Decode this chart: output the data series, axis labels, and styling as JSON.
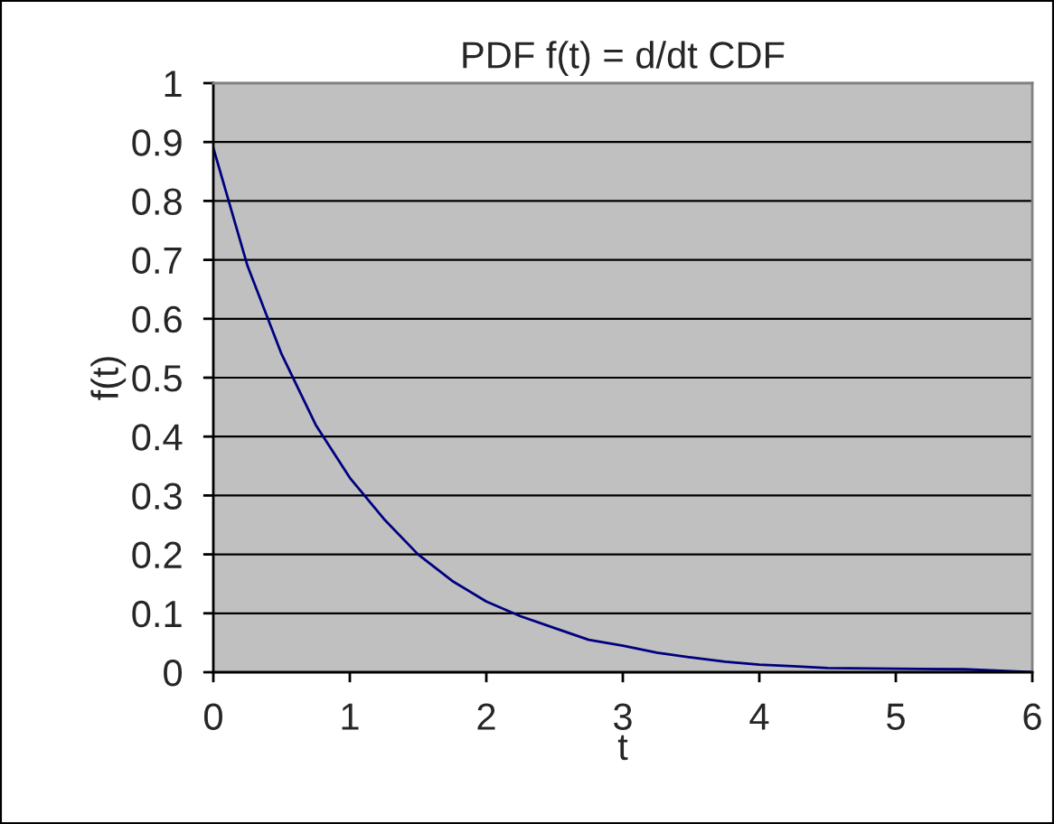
{
  "chart_data": {
    "type": "line",
    "title": "PDF f(t) = d/dt CDF",
    "xlabel": "t",
    "ylabel": "f(t)",
    "x": [
      0,
      0.25,
      0.5,
      0.75,
      1,
      1.25,
      1.5,
      1.75,
      2,
      2.25,
      2.5,
      2.75,
      3,
      3.25,
      3.5,
      3.75,
      4,
      4.25,
      4.5,
      5,
      5.5,
      6
    ],
    "series": [
      {
        "color": "#000080",
        "values": [
          0.89,
          0.69,
          0.54,
          0.42,
          0.33,
          0.26,
          0.2,
          0.155,
          0.12,
          0.095,
          0.075,
          0.055,
          0.045,
          0.033,
          0.025,
          0.018,
          0.013,
          0.01,
          0.007,
          0.006,
          0.005,
          0
        ]
      }
    ],
    "xlim": [
      0,
      6
    ],
    "xticks": [
      0,
      1,
      2,
      3,
      4,
      5,
      6
    ],
    "ylim": [
      0,
      1
    ],
    "yticks": [
      0,
      0.1,
      0.2,
      0.3,
      0.4,
      0.5,
      0.6,
      0.7,
      0.8,
      0.9,
      1
    ],
    "grid": "y",
    "legend": false,
    "marker": "none",
    "line_style": "solid"
  }
}
